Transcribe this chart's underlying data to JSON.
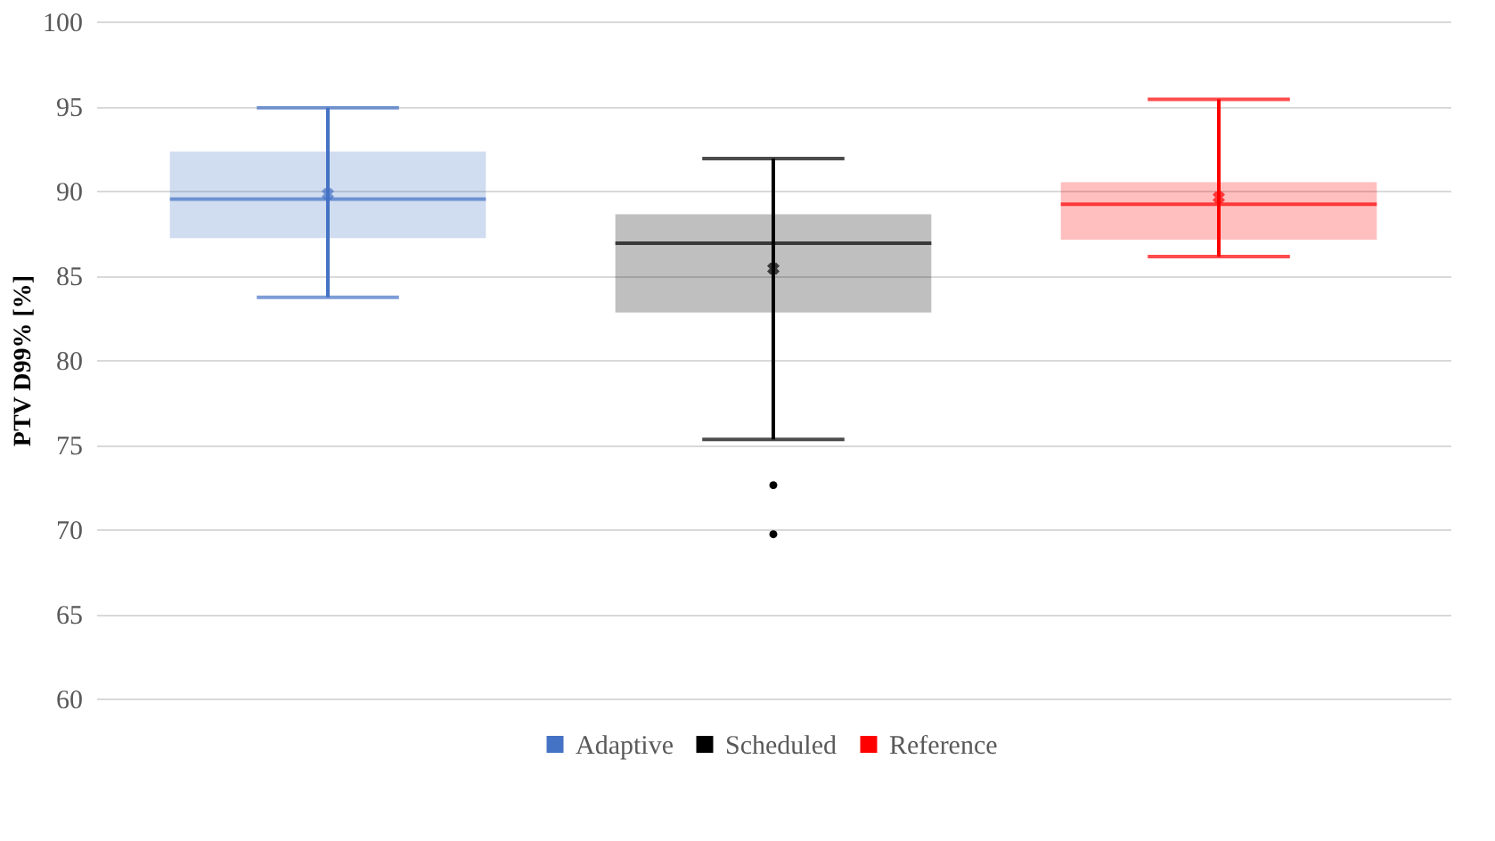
{
  "chart_data": {
    "type": "box",
    "ylabel": "PTV D99% [%]",
    "categories": [
      null
    ],
    "series": [
      {
        "name": "Adaptive",
        "color": "#4472c4",
        "boxes": [
          {
            "low": 83.7,
            "q1": 87.2,
            "median": 89.5,
            "q3": 92.3,
            "high": 94.9,
            "mean": 89.8
          }
        ]
      },
      {
        "name": "Scheduled",
        "color": "#000000",
        "boxes": [
          {
            "low": 75.3,
            "q1": 82.8,
            "median": 86.9,
            "q3": 88.6,
            "high": 91.9,
            "mean": 85.4,
            "outliers": [
              72.6,
              69.7
            ]
          }
        ]
      },
      {
        "name": "Reference",
        "color": "#ff0000",
        "boxes": [
          {
            "low": 86.1,
            "q1": 87.1,
            "median": 89.2,
            "q3": 90.5,
            "high": 95.4,
            "mean": 89.6
          }
        ]
      }
    ],
    "ylim": [
      60,
      100
    ],
    "yticks": [
      60,
      65,
      70,
      75,
      80,
      85,
      90,
      95,
      100
    ],
    "grid": "y",
    "legend": "bottom"
  }
}
